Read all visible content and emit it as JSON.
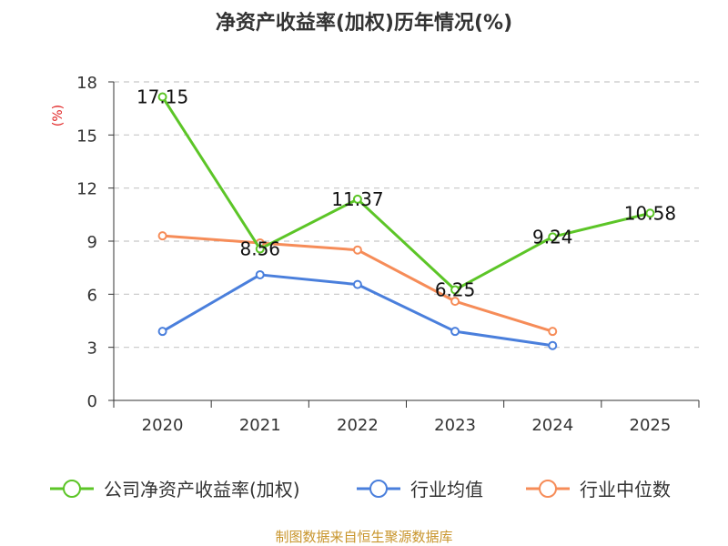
{
  "chart_data": {
    "type": "line",
    "title": "净资产收益率(加权)历年情况(%)",
    "ylabel": "(%)",
    "xlabel": "",
    "categories": [
      "2020",
      "2021",
      "2022",
      "2023",
      "2024",
      "2025"
    ],
    "ylim": [
      0,
      18
    ],
    "yticks": [
      0,
      3,
      6,
      9,
      12,
      15,
      18
    ],
    "grid": true,
    "legend_position": "bottom",
    "series": [
      {
        "name": "公司净资产收益率(加权)",
        "color": "#5cc527",
        "values": [
          17.15,
          8.56,
          11.37,
          6.25,
          9.24,
          10.58
        ],
        "labels": [
          "17.15",
          "8.56",
          "11.37",
          "6.25",
          "9.24",
          "10.58"
        ]
      },
      {
        "name": "行业均值",
        "color": "#4a7fdc",
        "values": [
          3.9,
          7.1,
          6.55,
          3.9,
          3.1,
          null
        ]
      },
      {
        "name": "行业中位数",
        "color": "#f68c58",
        "values": [
          9.3,
          8.9,
          8.5,
          5.6,
          3.9,
          null
        ]
      }
    ]
  },
  "source": "制图数据来自恒生聚源数据库"
}
